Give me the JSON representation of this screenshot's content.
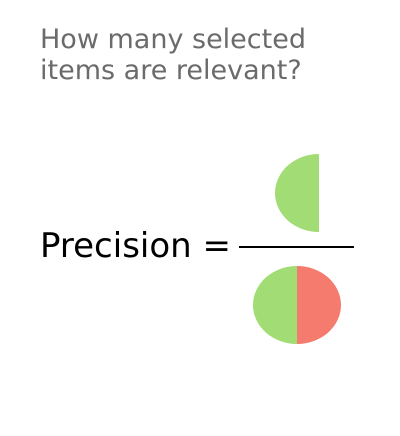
{
  "question": {
    "line1": "How many selected",
    "line2": "items are relevant?"
  },
  "formula": {
    "label": "Precision ="
  },
  "colors": {
    "relevant": "#a1dc74",
    "not_relevant": "#f47b6e",
    "question_text": "#6b6b6b",
    "label_text": "#000000",
    "fraction_bar": "#000000"
  },
  "diagram": {
    "numerator": [
      "relevant-selected-half"
    ],
    "denominator": [
      "relevant-selected-half",
      "not-relevant-selected-half"
    ]
  }
}
